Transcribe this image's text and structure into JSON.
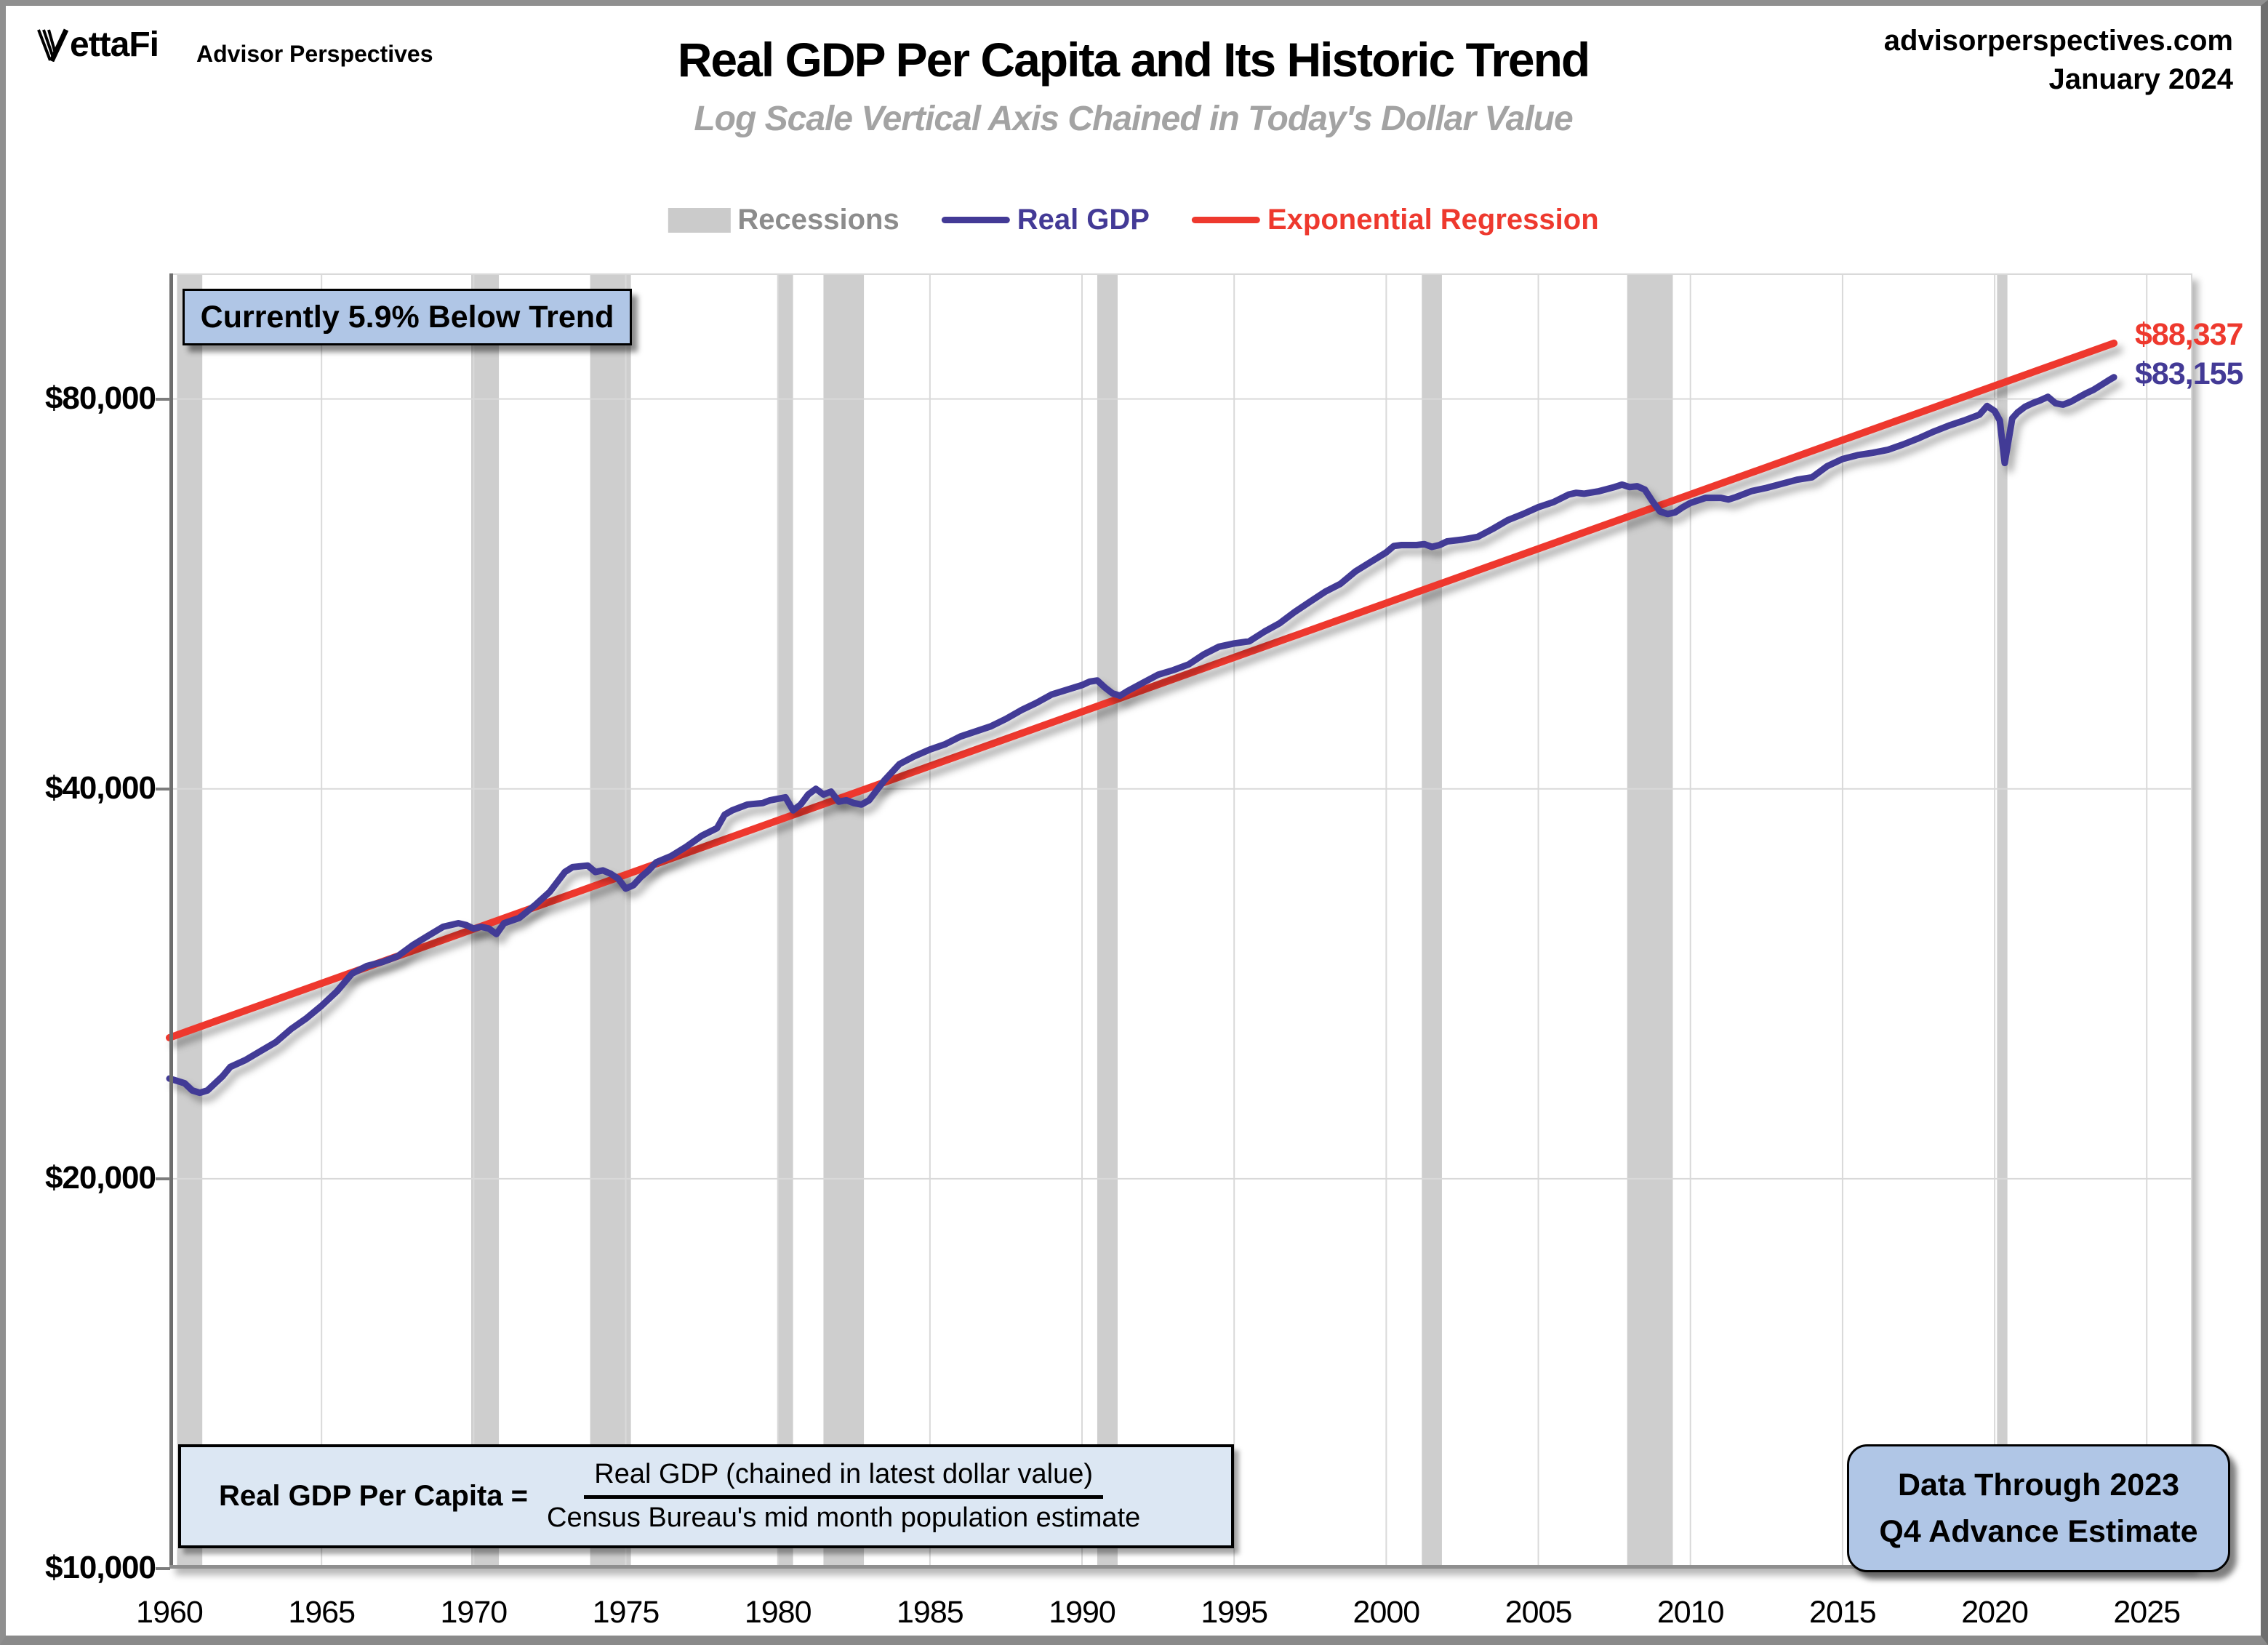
{
  "header": {
    "logo_text": "ettaFi",
    "logo_name": "VettaFi",
    "logo_subtext": "Advisor Perspectives",
    "title": "Real GDP Per Capita and Its Historic Trend",
    "subtitle": "Log Scale Vertical Axis Chained in Today's Dollar Value",
    "site": "advisorperspectives.com",
    "date": "January 2024"
  },
  "legend": [
    {
      "type": "box",
      "color": "#cbcbcb",
      "label": "Recessions",
      "label_color": "#8c8c8c"
    },
    {
      "type": "line",
      "color": "#433a96",
      "label": "Real GDP",
      "label_color": "#433a96"
    },
    {
      "type": "line",
      "color": "#ee392e",
      "label": "Exponential Regression",
      "label_color": "#ee392e"
    }
  ],
  "annotations": {
    "below_trend": "Currently 5.9% Below Trend",
    "trend_end_label": "$88,337",
    "gdp_end_label": "$83,155",
    "data_through_line1": "Data Through 2023",
    "data_through_line2": "Q4 Advance Estimate",
    "formula_lhs": "Real GDP Per Capita =",
    "formula_numerator": "Real GDP (chained in latest dollar value)",
    "formula_denominator": "Census Bureau's mid month population estimate"
  },
  "chart_data": {
    "type": "line",
    "title": "Real GDP Per Capita and Its Historic Trend",
    "x_range": [
      1960,
      2026.5
    ],
    "y_range": [
      10000,
      100000
    ],
    "y_scale": "log",
    "grid": true,
    "colors": {
      "recession": "#cecece",
      "gridline": "#d9d9d9",
      "frame": "#d9d9d9",
      "axis_left": "#6e6e6e",
      "axis_bottom": "#8f8f8f"
    },
    "x_ticks": [
      1960,
      1965,
      1970,
      1975,
      1980,
      1985,
      1990,
      1995,
      2000,
      2005,
      2010,
      2015,
      2020,
      2025
    ],
    "y_ticks": [
      {
        "value": 80000,
        "label": "$80,000"
      },
      {
        "value": 40000,
        "label": "$40,000"
      },
      {
        "value": 20000,
        "label": "$20,000"
      },
      {
        "value": 10000,
        "label": "$10,000"
      }
    ],
    "recessions": [
      [
        1960.25,
        1961.08
      ],
      [
        1969.92,
        1970.83
      ],
      [
        1973.83,
        1975.17
      ],
      [
        1980.0,
        1980.5
      ],
      [
        1981.5,
        1982.83
      ],
      [
        1990.5,
        1991.17
      ],
      [
        2001.17,
        2001.83
      ],
      [
        2007.92,
        2009.42
      ],
      [
        2020.08,
        2020.42
      ]
    ],
    "series": [
      {
        "name": "Real GDP",
        "color": "#433a96",
        "end_label": "$83,155",
        "points": [
          [
            1960.0,
            23900
          ],
          [
            1960.25,
            23800
          ],
          [
            1960.5,
            23700
          ],
          [
            1960.75,
            23400
          ],
          [
            1961.0,
            23300
          ],
          [
            1961.25,
            23400
          ],
          [
            1961.5,
            23700
          ],
          [
            1961.75,
            24000
          ],
          [
            1962.0,
            24400
          ],
          [
            1962.5,
            24700
          ],
          [
            1963.0,
            25100
          ],
          [
            1963.5,
            25500
          ],
          [
            1964.0,
            26100
          ],
          [
            1964.5,
            26600
          ],
          [
            1965.0,
            27200
          ],
          [
            1965.5,
            27900
          ],
          [
            1966.0,
            28800
          ],
          [
            1966.5,
            29200
          ],
          [
            1967.0,
            29400
          ],
          [
            1967.5,
            29700
          ],
          [
            1968.0,
            30300
          ],
          [
            1968.5,
            30800
          ],
          [
            1969.0,
            31300
          ],
          [
            1969.5,
            31500
          ],
          [
            1969.75,
            31400
          ],
          [
            1970.0,
            31200
          ],
          [
            1970.25,
            31300
          ],
          [
            1970.5,
            31200
          ],
          [
            1970.75,
            30900
          ],
          [
            1971.0,
            31500
          ],
          [
            1971.5,
            31800
          ],
          [
            1972.0,
            32500
          ],
          [
            1972.5,
            33300
          ],
          [
            1973.0,
            34500
          ],
          [
            1973.25,
            34800
          ],
          [
            1973.75,
            34900
          ],
          [
            1974.0,
            34500
          ],
          [
            1974.25,
            34600
          ],
          [
            1974.5,
            34400
          ],
          [
            1974.75,
            34100
          ],
          [
            1975.0,
            33500
          ],
          [
            1975.25,
            33700
          ],
          [
            1975.5,
            34200
          ],
          [
            1975.75,
            34600
          ],
          [
            1976.0,
            35100
          ],
          [
            1976.5,
            35500
          ],
          [
            1977.0,
            36100
          ],
          [
            1977.5,
            36800
          ],
          [
            1978.0,
            37300
          ],
          [
            1978.25,
            38200
          ],
          [
            1978.5,
            38500
          ],
          [
            1979.0,
            38900
          ],
          [
            1979.5,
            39000
          ],
          [
            1979.75,
            39200
          ],
          [
            1980.0,
            39300
          ],
          [
            1980.25,
            39400
          ],
          [
            1980.5,
            38500
          ],
          [
            1980.75,
            38900
          ],
          [
            1981.0,
            39600
          ],
          [
            1981.25,
            40000
          ],
          [
            1981.5,
            39600
          ],
          [
            1981.75,
            39800
          ],
          [
            1982.0,
            39100
          ],
          [
            1982.25,
            39200
          ],
          [
            1982.5,
            39000
          ],
          [
            1982.75,
            38900
          ],
          [
            1983.0,
            39200
          ],
          [
            1983.25,
            39900
          ],
          [
            1983.5,
            40600
          ],
          [
            1984.0,
            41800
          ],
          [
            1984.5,
            42400
          ],
          [
            1985.0,
            42900
          ],
          [
            1985.5,
            43300
          ],
          [
            1986.0,
            43900
          ],
          [
            1986.5,
            44300
          ],
          [
            1987.0,
            44700
          ],
          [
            1987.5,
            45300
          ],
          [
            1988.0,
            46000
          ],
          [
            1988.5,
            46600
          ],
          [
            1989.0,
            47300
          ],
          [
            1989.5,
            47700
          ],
          [
            1990.0,
            48100
          ],
          [
            1990.25,
            48400
          ],
          [
            1990.5,
            48500
          ],
          [
            1990.75,
            47900
          ],
          [
            1991.0,
            47400
          ],
          [
            1991.25,
            47200
          ],
          [
            1991.5,
            47600
          ],
          [
            1992.0,
            48300
          ],
          [
            1992.5,
            49000
          ],
          [
            1993.0,
            49400
          ],
          [
            1993.5,
            49900
          ],
          [
            1994.0,
            50800
          ],
          [
            1994.5,
            51500
          ],
          [
            1995.0,
            51800
          ],
          [
            1995.5,
            52000
          ],
          [
            1996.0,
            52900
          ],
          [
            1996.5,
            53700
          ],
          [
            1997.0,
            54800
          ],
          [
            1997.5,
            55800
          ],
          [
            1998.0,
            56800
          ],
          [
            1998.5,
            57600
          ],
          [
            1999.0,
            58900
          ],
          [
            1999.5,
            59900
          ],
          [
            2000.0,
            60900
          ],
          [
            2000.25,
            61600
          ],
          [
            2000.5,
            61700
          ],
          [
            2001.0,
            61700
          ],
          [
            2001.25,
            61800
          ],
          [
            2001.5,
            61500
          ],
          [
            2001.75,
            61700
          ],
          [
            2002.0,
            62100
          ],
          [
            2002.5,
            62300
          ],
          [
            2003.0,
            62600
          ],
          [
            2003.5,
            63500
          ],
          [
            2004.0,
            64500
          ],
          [
            2004.5,
            65200
          ],
          [
            2005.0,
            66000
          ],
          [
            2005.5,
            66600
          ],
          [
            2006.0,
            67500
          ],
          [
            2006.25,
            67700
          ],
          [
            2006.5,
            67600
          ],
          [
            2007.0,
            67900
          ],
          [
            2007.5,
            68400
          ],
          [
            2007.75,
            68700
          ],
          [
            2008.0,
            68400
          ],
          [
            2008.25,
            68500
          ],
          [
            2008.5,
            68100
          ],
          [
            2008.75,
            66700
          ],
          [
            2009.0,
            65500
          ],
          [
            2009.25,
            65200
          ],
          [
            2009.5,
            65400
          ],
          [
            2009.75,
            66000
          ],
          [
            2010.0,
            66500
          ],
          [
            2010.5,
            67100
          ],
          [
            2011.0,
            67100
          ],
          [
            2011.25,
            66900
          ],
          [
            2011.5,
            67200
          ],
          [
            2012.0,
            67900
          ],
          [
            2012.5,
            68300
          ],
          [
            2013.0,
            68800
          ],
          [
            2013.5,
            69300
          ],
          [
            2014.0,
            69600
          ],
          [
            2014.25,
            70300
          ],
          [
            2014.5,
            71000
          ],
          [
            2015.0,
            71900
          ],
          [
            2015.5,
            72400
          ],
          [
            2016.0,
            72700
          ],
          [
            2016.5,
            73100
          ],
          [
            2017.0,
            73800
          ],
          [
            2017.5,
            74600
          ],
          [
            2018.0,
            75500
          ],
          [
            2018.5,
            76300
          ],
          [
            2019.0,
            77000
          ],
          [
            2019.5,
            77800
          ],
          [
            2019.75,
            79000
          ],
          [
            2020.0,
            78300
          ],
          [
            2020.17,
            77000
          ],
          [
            2020.33,
            71400
          ],
          [
            2020.58,
            77300
          ],
          [
            2020.75,
            78100
          ],
          [
            2021.0,
            78900
          ],
          [
            2021.25,
            79400
          ],
          [
            2021.5,
            79800
          ],
          [
            2021.75,
            80300
          ],
          [
            2022.0,
            79400
          ],
          [
            2022.25,
            79200
          ],
          [
            2022.5,
            79600
          ],
          [
            2022.75,
            80200
          ],
          [
            2023.0,
            80800
          ],
          [
            2023.25,
            81300
          ],
          [
            2023.5,
            82000
          ],
          [
            2023.75,
            82700
          ],
          [
            2023.92,
            83155
          ]
        ]
      },
      {
        "name": "Exponential Regression",
        "color": "#ee392e",
        "end_label": "$88,337",
        "points": [
          [
            1960.0,
            25700
          ],
          [
            2023.92,
            88337
          ]
        ]
      }
    ]
  }
}
